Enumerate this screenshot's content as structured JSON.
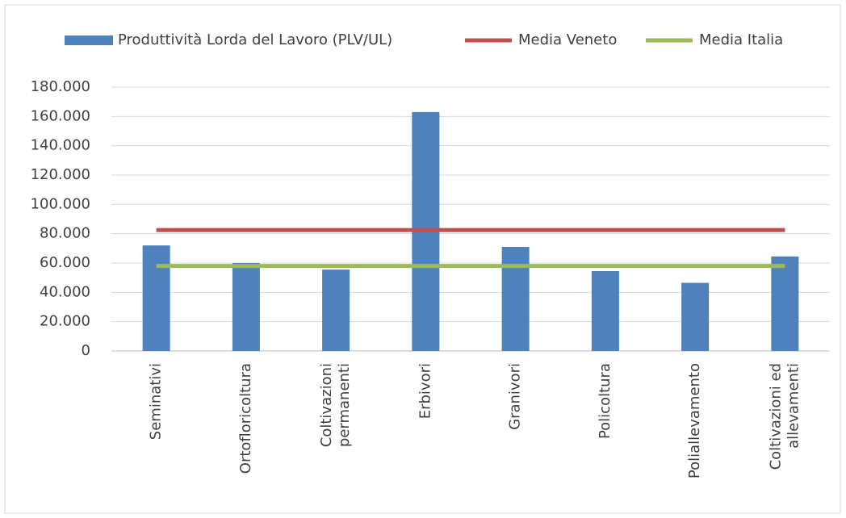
{
  "chart_data": {
    "type": "bar",
    "categories": [
      "Seminativi",
      "Ortofloricoltura",
      "Coltivazioni\npermanenti",
      "Erbivori",
      "Granivori",
      "Policoltura",
      "Poliallevamento",
      "Coltivazioni ed\nallevamenti"
    ],
    "series": [
      {
        "name": "Produttività Lorda del Lavoro (PLV/UL)",
        "type": "bar",
        "color": "#4f81bd",
        "values": [
          72000,
          60000,
          55500,
          163000,
          71000,
          54500,
          46500,
          64500
        ]
      },
      {
        "name": "Media Veneto",
        "type": "line",
        "color": "#c0504d",
        "values": [
          82500,
          82500,
          82500,
          82500,
          82500,
          82500,
          82500,
          82500
        ]
      },
      {
        "name": "Media Italia",
        "type": "line",
        "color": "#9bbb59",
        "values": [
          58000,
          58000,
          58000,
          58000,
          58000,
          58000,
          58000,
          58000
        ]
      }
    ],
    "ylim": [
      0,
      180000
    ],
    "yticks": [
      0,
      {
        "value": 20000,
        "label": "20.000"
      },
      {
        "value": 40000,
        "label": "40.000"
      },
      {
        "value": 60000,
        "label": "60.000"
      },
      {
        "value": 80000,
        "label": "80.000"
      },
      {
        "value": 100000,
        "label": "100.000"
      },
      {
        "value": 120000,
        "label": "120.000"
      },
      {
        "value": 140000,
        "label": "140.000"
      },
      {
        "value": 160000,
        "label": "160.000"
      },
      {
        "value": 180000,
        "label": "180.000"
      }
    ],
    "grid": true,
    "legend": "top"
  }
}
